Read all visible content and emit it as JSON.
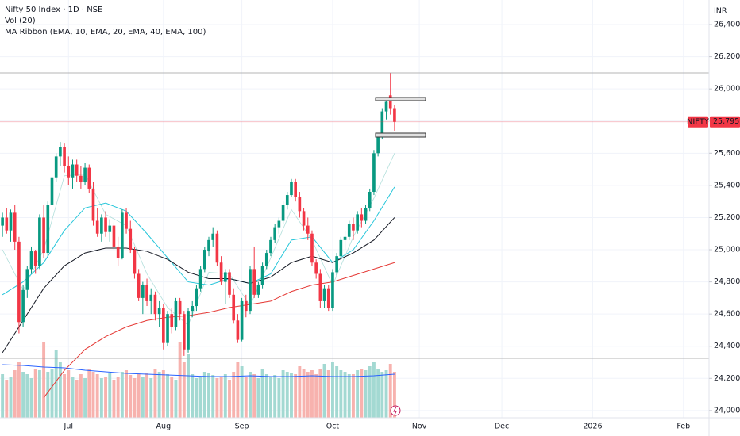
{
  "chart_data": {
    "type": "candlestick",
    "title": "Nifty 50 Index · 1D · NSE",
    "indicators": [
      "Vol (20)",
      "MA Ribbon (EMA, 10, EMA, 20, EMA, 40, EMA, 100)"
    ],
    "currency": "INR",
    "up_color": "#089981",
    "down_color": "#f23645",
    "candles": [
      [
        25150,
        25230,
        25080,
        25200
      ],
      [
        25200,
        25260,
        25100,
        25120
      ],
      [
        25120,
        25250,
        25050,
        25230
      ],
      [
        25230,
        25280,
        25000,
        25050
      ],
      [
        25050,
        25080,
        24480,
        24550
      ],
      [
        24550,
        24780,
        24520,
        24750
      ],
      [
        24750,
        24900,
        24700,
        24880
      ],
      [
        24880,
        25020,
        24850,
        24990
      ],
      [
        24990,
        25000,
        24850,
        24900
      ],
      [
        24900,
        25220,
        24880,
        25200
      ],
      [
        25200,
        25280,
        24950,
        24980
      ],
      [
        24980,
        25300,
        24960,
        25280
      ],
      [
        25280,
        25480,
        25250,
        25450
      ],
      [
        25450,
        25600,
        25420,
        25580
      ],
      [
        25580,
        25670,
        25520,
        25640
      ],
      [
        25640,
        25660,
        25480,
        25520
      ],
      [
        25520,
        25580,
        25400,
        25450
      ],
      [
        25450,
        25560,
        25380,
        25530
      ],
      [
        25530,
        25560,
        25420,
        25460
      ],
      [
        25460,
        25520,
        25380,
        25420
      ],
      [
        25420,
        25540,
        25400,
        25510
      ],
      [
        25510,
        25530,
        25350,
        25380
      ],
      [
        25380,
        25420,
        25150,
        25180
      ],
      [
        25180,
        25260,
        25080,
        25100
      ],
      [
        25100,
        25220,
        25050,
        25200
      ],
      [
        25200,
        25240,
        25080,
        25110
      ],
      [
        25110,
        25190,
        25050,
        25150
      ],
      [
        25150,
        25170,
        25000,
        25020
      ],
      [
        25020,
        25080,
        24900,
        24950
      ],
      [
        24950,
        25250,
        24940,
        25230
      ],
      [
        25230,
        25260,
        25100,
        25130
      ],
      [
        25130,
        25180,
        24980,
        25000
      ],
      [
        25000,
        25020,
        24820,
        24850
      ],
      [
        24850,
        24880,
        24680,
        24700
      ],
      [
        24700,
        24800,
        24600,
        24780
      ],
      [
        24780,
        24820,
        24650,
        24680
      ],
      [
        24680,
        24760,
        24600,
        24720
      ],
      [
        24720,
        24740,
        24560,
        24600
      ],
      [
        24600,
        24680,
        24520,
        24640
      ],
      [
        24640,
        24660,
        24380,
        24420
      ],
      [
        24420,
        24620,
        24400,
        24600
      ],
      [
        24600,
        24640,
        24480,
        24520
      ],
      [
        24520,
        24700,
        24500,
        24680
      ],
      [
        24680,
        24700,
        24560,
        24600
      ],
      [
        24600,
        24620,
        24340,
        24380
      ],
      [
        24380,
        24640,
        24360,
        24620
      ],
      [
        24620,
        24680,
        24580,
        24650
      ],
      [
        24650,
        24780,
        24620,
        24760
      ],
      [
        24760,
        24900,
        24740,
        24880
      ],
      [
        24880,
        25020,
        24860,
        25000
      ],
      [
        24990,
        25080,
        24960,
        25060
      ],
      [
        25060,
        25140,
        25020,
        25100
      ],
      [
        25100,
        25120,
        24900,
        24920
      ],
      [
        24920,
        24960,
        24780,
        24800
      ],
      [
        24800,
        24880,
        24660,
        24860
      ],
      [
        24860,
        24880,
        24700,
        24720
      ],
      [
        24720,
        24760,
        24540,
        24560
      ],
      [
        24560,
        24600,
        24420,
        24440
      ],
      [
        24440,
        24700,
        24430,
        24680
      ],
      [
        24680,
        24720,
        24580,
        24620
      ],
      [
        24620,
        24900,
        24600,
        24880
      ],
      [
        24880,
        25020,
        24700,
        24720
      ],
      [
        24720,
        24800,
        24700,
        24780
      ],
      [
        24780,
        24920,
        24760,
        24900
      ],
      [
        24900,
        25000,
        24880,
        24980
      ],
      [
        24980,
        25080,
        24960,
        25060
      ],
      [
        25060,
        25160,
        25040,
        25140
      ],
      [
        25140,
        25200,
        25100,
        25180
      ],
      [
        25180,
        25300,
        25160,
        25280
      ],
      [
        25280,
        25360,
        25250,
        25340
      ],
      [
        25340,
        25440,
        25330,
        25420
      ],
      [
        25420,
        25440,
        25300,
        25330
      ],
      [
        25330,
        25360,
        25200,
        25240
      ],
      [
        25240,
        25260,
        25120,
        25150
      ],
      [
        25150,
        25200,
        25060,
        25100
      ],
      [
        25100,
        25120,
        24900,
        24920
      ],
      [
        24920,
        24940,
        24820,
        24850
      ],
      [
        24850,
        24880,
        24640,
        24680
      ],
      [
        24680,
        24780,
        24640,
        24760
      ],
      [
        24760,
        24780,
        24620,
        24640
      ],
      [
        24640,
        24880,
        24620,
        24860
      ],
      [
        24860,
        24980,
        24840,
        24960
      ],
      [
        24960,
        25080,
        24940,
        25060
      ],
      [
        25060,
        25120,
        25000,
        25080
      ],
      [
        25080,
        25180,
        25060,
        25160
      ],
      [
        25160,
        25200,
        25060,
        25120
      ],
      [
        25120,
        25240,
        25100,
        25220
      ],
      [
        25220,
        25260,
        25140,
        25180
      ],
      [
        25180,
        25280,
        25160,
        25260
      ],
      [
        25260,
        25380,
        25240,
        25360
      ],
      [
        25360,
        25620,
        25340,
        25600
      ],
      [
        25600,
        25720,
        25580,
        25700
      ],
      [
        25700,
        25880,
        25690,
        25860
      ],
      [
        25860,
        25940,
        25810,
        25920
      ],
      [
        25960,
        26100,
        25840,
        25880
      ],
      [
        25880,
        25900,
        25740,
        25795.15
      ]
    ],
    "volume": {
      "up_color": "#a3d9d2",
      "down_color": "#f7b2ae",
      "vlim": [
        0,
        100
      ],
      "values": [
        55,
        48,
        52,
        60,
        70,
        58,
        55,
        50,
        62,
        60,
        95,
        58,
        62,
        85,
        70,
        55,
        60,
        52,
        48,
        55,
        50,
        62,
        58,
        55,
        50,
        52,
        56,
        48,
        52,
        58,
        60,
        54,
        50,
        55,
        52,
        56,
        50,
        62,
        58,
        60,
        55,
        52,
        48,
        96,
        70,
        80,
        55,
        50,
        52,
        58,
        56,
        54,
        50,
        52,
        55,
        48,
        58,
        70,
        65,
        52,
        58,
        55,
        50,
        62,
        55,
        52,
        54,
        50,
        60,
        58,
        56,
        55,
        65,
        62,
        58,
        60,
        55,
        62,
        68,
        60,
        70,
        65,
        60,
        58,
        55,
        55,
        60,
        62,
        60,
        65,
        70,
        62,
        58,
        60,
        68,
        58
      ],
      "ma": {
        "color": "#2962ff",
        "values": [
          67,
          66,
          64,
          63,
          60,
          58,
          56,
          55,
          54,
          53,
          52,
          52,
          53,
          52,
          52,
          53,
          52,
          52,
          53,
          55
        ]
      }
    },
    "ema_x": [
      0,
      5,
      10,
      15,
      20,
      25,
      30,
      35,
      40,
      45,
      50,
      55,
      60,
      65,
      70,
      75,
      80,
      85,
      90,
      95
    ],
    "ema": [
      {
        "color": "#b2dfdb",
        "values": [
          25000,
          24750,
          25000,
          25460,
          25470,
          25220,
          25150,
          24850,
          24640,
          24530,
          24860,
          24850,
          24650,
          24950,
          25250,
          25060,
          24780,
          25080,
          25320,
          25600
        ]
      },
      {
        "color": "#26c6da",
        "values": [
          24720,
          24800,
          24920,
          25120,
          25260,
          25290,
          25240,
          25100,
          24950,
          24800,
          24780,
          24820,
          24790,
          24850,
          25060,
          25080,
          24920,
          25000,
          25180,
          25390
        ]
      },
      {
        "color": "#131722",
        "values": [
          24360,
          24560,
          24760,
          24900,
          24980,
          25010,
          25010,
          24990,
          24940,
          24860,
          24820,
          24820,
          24790,
          24830,
          24920,
          24960,
          24920,
          24980,
          25060,
          25200
        ]
      },
      {
        "color": "#e53935",
        "values": [
          null,
          null,
          24080,
          24250,
          24380,
          24460,
          24520,
          24560,
          24580,
          24590,
          24610,
          24640,
          24660,
          24680,
          24740,
          24780,
          24800,
          24840,
          24880,
          24920
        ]
      }
    ],
    "xlim": [
      -0.6,
      171.2
    ],
    "xticks": [
      {
        "value": 16,
        "label": "Jul"
      },
      {
        "value": 39,
        "label": "Aug"
      },
      {
        "value": 58,
        "label": "Sep"
      },
      {
        "value": 80,
        "label": "Oct"
      },
      {
        "value": 101,
        "label": "Nov"
      },
      {
        "value": 121,
        "label": "Dec"
      },
      {
        "value": 143,
        "label": "2026"
      },
      {
        "value": 165,
        "label": "Feb"
      }
    ],
    "ylim": [
      23955,
      26553
    ],
    "yticks": [
      {
        "value": 24000,
        "label": "24,000.00"
      },
      {
        "value": 24200,
        "label": "24,200.00"
      },
      {
        "value": 24400,
        "label": "24,400.00"
      },
      {
        "value": 24600,
        "label": "24,600.00"
      },
      {
        "value": 24800,
        "label": "24,800.00"
      },
      {
        "value": 25000,
        "label": "25,000.00"
      },
      {
        "value": 25200,
        "label": "25,200.00"
      },
      {
        "value": 25400,
        "label": "25,400.00"
      },
      {
        "value": 25600,
        "label": "25,600.00"
      },
      {
        "value": 25800,
        "label": "25,800.00"
      },
      {
        "value": 26000,
        "label": "26,000.00"
      },
      {
        "value": 26200,
        "label": "26,200.00"
      },
      {
        "value": 26400,
        "label": "26,400.00"
      }
    ],
    "last_price": {
      "value": 25795.15,
      "label": "25,795.15",
      "symbol": "NIFTY",
      "color": "#f23645"
    },
    "grid": true
  }
}
